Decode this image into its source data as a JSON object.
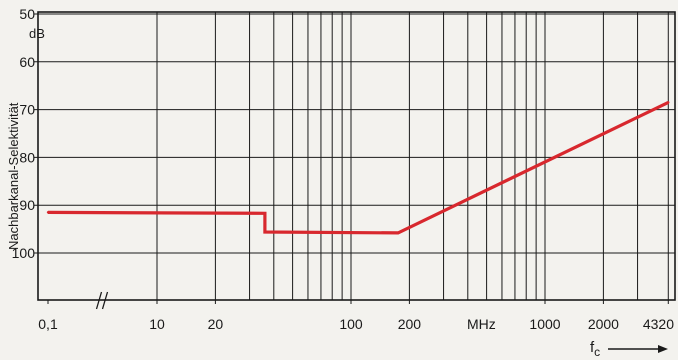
{
  "chart_data": {
    "type": "line",
    "title": "",
    "ylabel": "Nachbarkanal-Selektivität",
    "yunit": "dB",
    "xlabel_main": "f",
    "xlabel_sub": "c",
    "xunit_label": "MHz",
    "y_scale": "linear-reversed",
    "ylim": [
      50,
      110
    ],
    "y_ticks": [
      {
        "value": 50,
        "label": "50"
      },
      {
        "value": 60,
        "label": "60"
      },
      {
        "value": 70,
        "label": "70"
      },
      {
        "value": 80,
        "label": "80"
      },
      {
        "value": 90,
        "label": "90"
      },
      {
        "value": 100,
        "label": "100"
      }
    ],
    "x_scale": "log-with-break",
    "x_break": {
      "after": 0.1,
      "before": 10,
      "symbol": "//"
    },
    "x_ticks": [
      {
        "value": 0.1,
        "label": "0,1"
      },
      {
        "value": 10,
        "label": "10"
      },
      {
        "value": 20,
        "label": "20"
      },
      {
        "value": 100,
        "label": "100"
      },
      {
        "value": 200,
        "label": "200"
      },
      {
        "value": 1000,
        "label": "1000"
      },
      {
        "value": 2000,
        "label": "2000"
      },
      {
        "value": 4320,
        "label": "4320"
      }
    ],
    "x_gridlines": [
      10,
      20,
      30,
      40,
      50,
      60,
      70,
      80,
      90,
      100,
      200,
      300,
      400,
      500,
      600,
      700,
      800,
      900,
      1000,
      2000,
      3000,
      4320
    ],
    "series": [
      {
        "name": "",
        "color": "#d8282e",
        "points": [
          {
            "x": 0.1,
            "y": 91.5
          },
          {
            "x": 36,
            "y": 91.7
          },
          {
            "x": 36,
            "y": 95.6
          },
          {
            "x": 175,
            "y": 95.8
          },
          {
            "x": 4320,
            "y": 68.5
          }
        ]
      }
    ],
    "grid": true,
    "legend": "none"
  }
}
